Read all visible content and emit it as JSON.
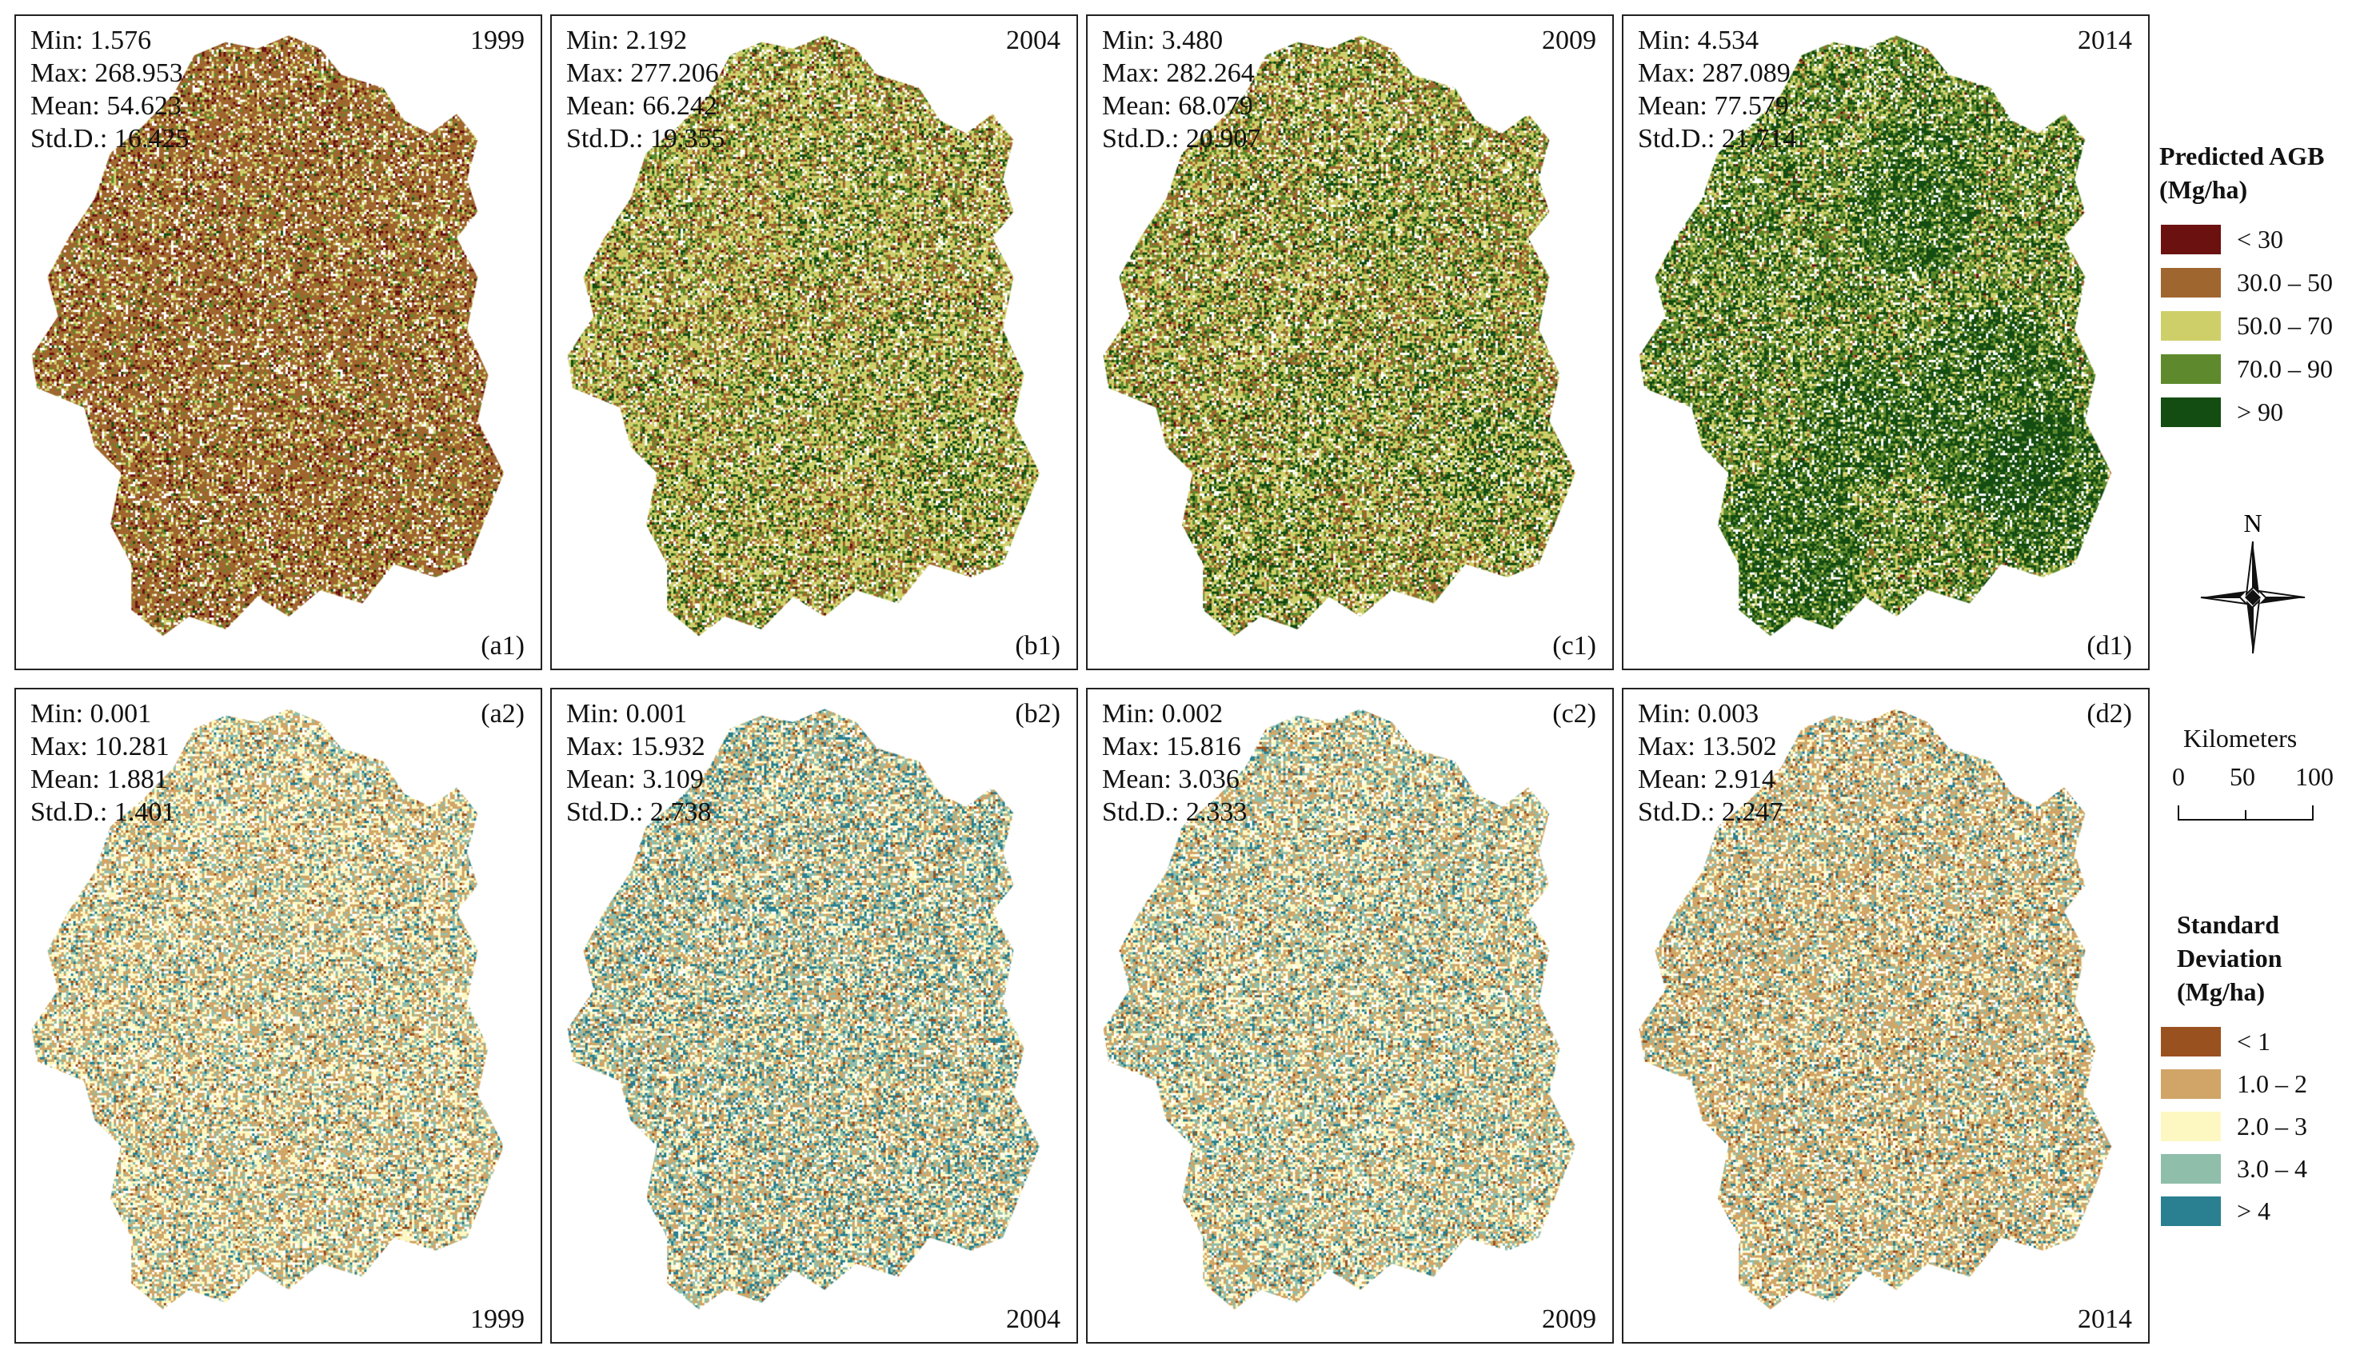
{
  "panels": [
    {
      "id": "a1",
      "stats": {
        "min": "Min: 1.576",
        "max": "Max: 268.953",
        "mean": "Mean: 54.623",
        "std": "Std.D.: 16.425"
      },
      "top_right": "1999",
      "bottom_right": "(a1)",
      "palette": "agb",
      "mix": [
        0.12,
        0.62,
        0.18,
        0.06,
        0.02
      ]
    },
    {
      "id": "b1",
      "stats": {
        "min": "Min: 2.192",
        "max": "Max: 277.206",
        "mean": "Mean: 66.242",
        "std": "Std.D.: 19.355"
      },
      "top_right": "2004",
      "bottom_right": "(b1)",
      "palette": "agb",
      "mix": [
        0.03,
        0.25,
        0.45,
        0.17,
        0.1
      ]
    },
    {
      "id": "c1",
      "stats": {
        "min": "Min: 3.480",
        "max": "Max: 282.264",
        "mean": "Mean: 68.079",
        "std": "Std.D.: 20.907"
      },
      "top_right": "2009",
      "bottom_right": "(c1)",
      "palette": "agb",
      "mix": [
        0.02,
        0.25,
        0.4,
        0.2,
        0.13
      ]
    },
    {
      "id": "d1",
      "stats": {
        "min": "Min: 4.534",
        "max": "Max: 287.089",
        "mean": "Mean: 77.579",
        "std": "Std.D.: 21.714"
      },
      "top_right": "2014",
      "bottom_right": "(d1)",
      "palette": "agb",
      "mix": [
        0.01,
        0.06,
        0.28,
        0.35,
        0.3
      ]
    },
    {
      "id": "a2",
      "stats": {
        "min": "Min: 0.001",
        "max": "Max: 10.281",
        "mean": "Mean: 1.881",
        "std": "Std.D.: 1.401"
      },
      "top_right": "(a2)",
      "bottom_right": "1999",
      "palette": "sd",
      "mix": [
        0.04,
        0.35,
        0.35,
        0.18,
        0.08
      ]
    },
    {
      "id": "b2",
      "stats": {
        "min": "Min: 0.001",
        "max": "Max: 15.932",
        "mean": "Mean: 3.109",
        "std": "Std.D.: 2.738"
      },
      "top_right": "(b2)",
      "bottom_right": "2004",
      "palette": "sd",
      "mix": [
        0.04,
        0.3,
        0.26,
        0.22,
        0.18
      ]
    },
    {
      "id": "c2",
      "stats": {
        "min": "Min: 0.002",
        "max": "Max: 15.816",
        "mean": "Mean: 3.036",
        "std": "Std.D.: 2.333"
      },
      "top_right": "(c2)",
      "bottom_right": "2009",
      "palette": "sd",
      "mix": [
        0.04,
        0.32,
        0.3,
        0.22,
        0.12
      ]
    },
    {
      "id": "d2",
      "stats": {
        "min": "Min: 0.003",
        "max": "Max: 13.502",
        "mean": "Mean: 2.914",
        "std": "Std.D.: 2.247"
      },
      "top_right": "(d2)",
      "bottom_right": "2014",
      "palette": "sd",
      "mix": [
        0.05,
        0.45,
        0.25,
        0.15,
        0.1
      ]
    }
  ],
  "legend_agb": {
    "title_line1": "Predicted AGB",
    "title_line2": "(Mg/ha)",
    "items": [
      {
        "label": "< 30",
        "color": "#6b1211"
      },
      {
        "label": "30.0 – 50",
        "color": "#a0662f"
      },
      {
        "label": "50.0 – 70",
        "color": "#cfcf6a"
      },
      {
        "label": "70.0 – 90",
        "color": "#5e8a2d"
      },
      {
        "label": "> 90",
        "color": "#144d12"
      }
    ]
  },
  "north": {
    "label": "N"
  },
  "scale": {
    "title": "Kilometers",
    "ticks": [
      "0",
      "50",
      "100"
    ]
  },
  "legend_sd": {
    "title_line1": "Standard",
    "title_line2": "Deviation",
    "title_line3": "(Mg/ha)",
    "items": [
      {
        "label": "< 1",
        "color": "#9a5120"
      },
      {
        "label": "1.0 – 2",
        "color": "#d0a567"
      },
      {
        "label": "2.0 – 3",
        "color": "#fdf8c2"
      },
      {
        "label": "3.0 – 4",
        "color": "#8fbeab"
      },
      {
        "label": "> 4",
        "color": "#2a8090"
      }
    ]
  }
}
